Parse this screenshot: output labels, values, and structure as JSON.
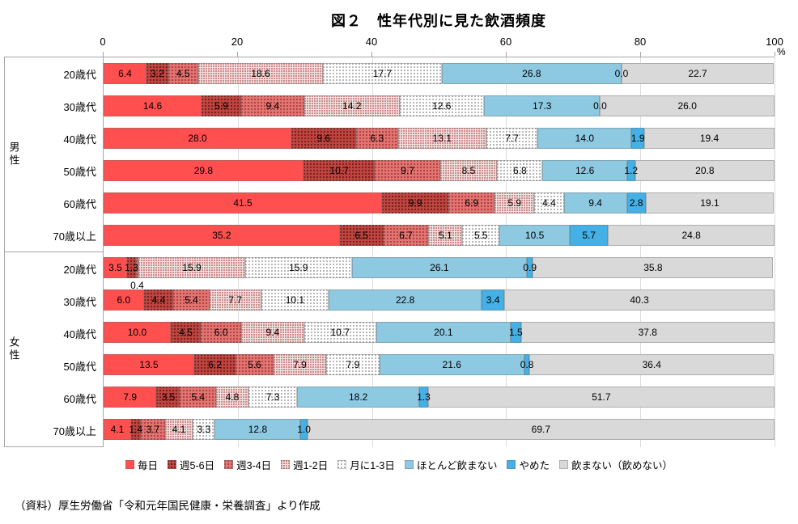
{
  "title": "図２　性年代別に見た飲酒頻度",
  "source": "（資料）厚生労働省「令和元年国民健康・栄養調査」より作成",
  "axis": {
    "ticks": [
      0,
      20,
      40,
      60,
      80,
      100
    ],
    "unit": "%"
  },
  "chart_data": {
    "type": "bar",
    "variant": "horizontal-stacked-100",
    "xlim": [
      0,
      100
    ],
    "grid": "vertical-major",
    "legend_position": "bottom",
    "series_labels": [
      "毎日",
      "週5-6日",
      "週3-4日",
      "週1-2日",
      "月に1-3日",
      "ほとんど飲まない",
      "やめた",
      "飲まない（飲めない）"
    ],
    "colors": [
      "#ff4f4f",
      "#bf4540",
      "#e27472",
      "#f3e3e2",
      "#ffffff",
      "#8ec9e2",
      "#45b0e5",
      "#d9d9d9"
    ],
    "groups": [
      {
        "label": "男性",
        "rows": [
          {
            "category": "20歳代",
            "values": [
              6.4,
              3.2,
              4.5,
              18.6,
              17.7,
              26.8,
              0.0,
              22.7
            ]
          },
          {
            "category": "30歳代",
            "values": [
              14.6,
              5.9,
              9.4,
              14.2,
              12.6,
              17.3,
              0.0,
              26.0
            ]
          },
          {
            "category": "40歳代",
            "values": [
              28.0,
              9.6,
              6.3,
              13.1,
              7.7,
              14.0,
              1.9,
              19.4
            ]
          },
          {
            "category": "50歳代",
            "values": [
              29.8,
              10.7,
              9.7,
              8.5,
              6.8,
              12.6,
              1.2,
              20.8
            ]
          },
          {
            "category": "60歳代",
            "values": [
              41.5,
              9.9,
              6.9,
              5.9,
              4.4,
              9.4,
              2.8,
              19.1
            ]
          },
          {
            "category": "70歳以上",
            "values": [
              35.2,
              6.5,
              6.7,
              5.1,
              5.5,
              10.5,
              5.7,
              24.8
            ]
          }
        ]
      },
      {
        "label": "女性",
        "rows": [
          {
            "category": "20歳代",
            "values": [
              3.5,
              1.3,
              0.4,
              15.9,
              15.9,
              26.1,
              0.9,
              35.8
            ],
            "below_label_index": 2
          },
          {
            "category": "30歳代",
            "values": [
              6.0,
              4.4,
              5.4,
              7.7,
              10.1,
              22.8,
              3.4,
              40.3
            ]
          },
          {
            "category": "40歳代",
            "values": [
              10.0,
              4.5,
              6.0,
              9.4,
              10.7,
              20.1,
              1.5,
              37.8
            ]
          },
          {
            "category": "50歳代",
            "values": [
              13.5,
              6.2,
              5.6,
              7.9,
              7.9,
              21.6,
              0.8,
              36.4
            ]
          },
          {
            "category": "60歳代",
            "values": [
              7.9,
              3.5,
              5.4,
              4.8,
              7.3,
              18.2,
              1.3,
              51.7
            ]
          },
          {
            "category": "70歳以上",
            "values": [
              4.1,
              1.4,
              3.7,
              4.1,
              3.3,
              12.8,
              1.0,
              69.7
            ]
          }
        ]
      }
    ]
  }
}
